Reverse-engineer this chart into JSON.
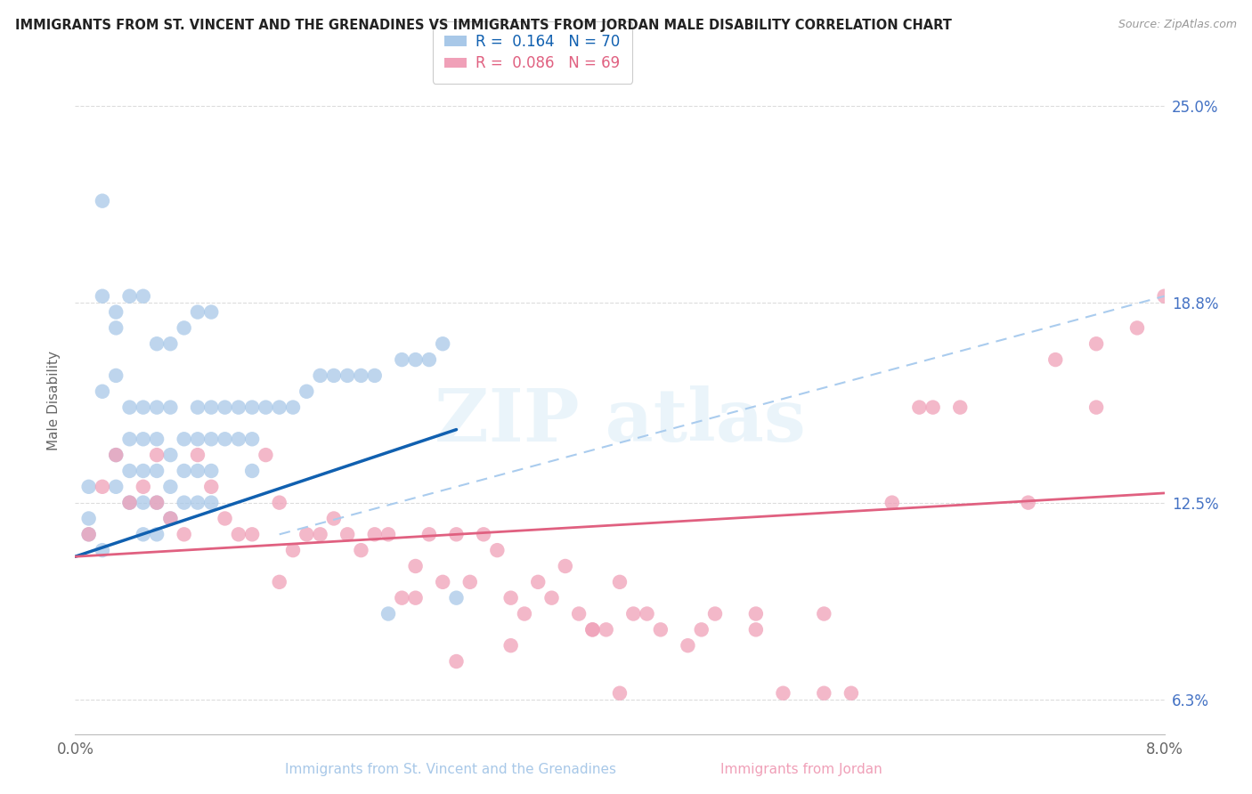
{
  "title": "IMMIGRANTS FROM ST. VINCENT AND THE GRENADINES VS IMMIGRANTS FROM JORDAN MALE DISABILITY CORRELATION CHART",
  "source": "Source: ZipAtlas.com",
  "xlabel_blue": "Immigrants from St. Vincent and the Grenadines",
  "xlabel_pink": "Immigrants from Jordan",
  "ylabel": "Male Disability",
  "xlim": [
    0.0,
    0.08
  ],
  "ylim": [
    0.052,
    0.262
  ],
  "yticks": [
    0.063,
    0.125,
    0.188,
    0.25
  ],
  "ytick_labels": [
    "6.3%",
    "12.5%",
    "18.8%",
    "25.0%"
  ],
  "xtick_labels": [
    "0.0%",
    "8.0%"
  ],
  "R_blue": 0.164,
  "N_blue": 70,
  "R_pink": 0.086,
  "N_pink": 69,
  "color_blue": "#a8c8e8",
  "color_pink": "#f0a0b8",
  "trendline_blue": "#1060b0",
  "trendline_pink": "#e06080",
  "blue_scatter_x": [
    0.001,
    0.001,
    0.001,
    0.002,
    0.002,
    0.002,
    0.003,
    0.003,
    0.003,
    0.003,
    0.004,
    0.004,
    0.004,
    0.004,
    0.005,
    0.005,
    0.005,
    0.005,
    0.005,
    0.006,
    0.006,
    0.006,
    0.006,
    0.006,
    0.007,
    0.007,
    0.007,
    0.007,
    0.008,
    0.008,
    0.008,
    0.009,
    0.009,
    0.009,
    0.009,
    0.01,
    0.01,
    0.01,
    0.01,
    0.011,
    0.011,
    0.012,
    0.012,
    0.013,
    0.013,
    0.013,
    0.014,
    0.015,
    0.016,
    0.017,
    0.018,
    0.019,
    0.02,
    0.021,
    0.022,
    0.023,
    0.024,
    0.025,
    0.026,
    0.027,
    0.028,
    0.006,
    0.007,
    0.008,
    0.009,
    0.01,
    0.003,
    0.004,
    0.005,
    0.002
  ],
  "blue_scatter_y": [
    0.115,
    0.13,
    0.12,
    0.22,
    0.19,
    0.11,
    0.18,
    0.165,
    0.14,
    0.13,
    0.155,
    0.145,
    0.135,
    0.125,
    0.155,
    0.145,
    0.135,
    0.125,
    0.115,
    0.155,
    0.145,
    0.135,
    0.125,
    0.115,
    0.155,
    0.14,
    0.13,
    0.12,
    0.145,
    0.135,
    0.125,
    0.155,
    0.145,
    0.135,
    0.125,
    0.155,
    0.145,
    0.135,
    0.125,
    0.155,
    0.145,
    0.155,
    0.145,
    0.155,
    0.145,
    0.135,
    0.155,
    0.155,
    0.155,
    0.16,
    0.165,
    0.165,
    0.165,
    0.165,
    0.165,
    0.09,
    0.17,
    0.17,
    0.17,
    0.175,
    0.095,
    0.175,
    0.175,
    0.18,
    0.185,
    0.185,
    0.185,
    0.19,
    0.19,
    0.16
  ],
  "pink_scatter_x": [
    0.001,
    0.002,
    0.003,
    0.004,
    0.005,
    0.006,
    0.006,
    0.007,
    0.008,
    0.009,
    0.01,
    0.011,
    0.012,
    0.013,
    0.014,
    0.015,
    0.016,
    0.017,
    0.018,
    0.019,
    0.02,
    0.021,
    0.022,
    0.023,
    0.024,
    0.025,
    0.026,
    0.027,
    0.028,
    0.029,
    0.03,
    0.031,
    0.032,
    0.033,
    0.034,
    0.035,
    0.036,
    0.037,
    0.038,
    0.039,
    0.04,
    0.041,
    0.043,
    0.045,
    0.047,
    0.05,
    0.052,
    0.055,
    0.057,
    0.04,
    0.025,
    0.015,
    0.028,
    0.032,
    0.038,
    0.042,
    0.046,
    0.05,
    0.055,
    0.06,
    0.062,
    0.065,
    0.07,
    0.072,
    0.075,
    0.078,
    0.08,
    0.063,
    0.075
  ],
  "pink_scatter_y": [
    0.115,
    0.13,
    0.14,
    0.125,
    0.13,
    0.125,
    0.14,
    0.12,
    0.115,
    0.14,
    0.13,
    0.12,
    0.115,
    0.115,
    0.14,
    0.1,
    0.11,
    0.115,
    0.115,
    0.12,
    0.115,
    0.11,
    0.115,
    0.115,
    0.095,
    0.105,
    0.115,
    0.1,
    0.115,
    0.1,
    0.115,
    0.11,
    0.095,
    0.09,
    0.1,
    0.095,
    0.105,
    0.09,
    0.085,
    0.085,
    0.065,
    0.09,
    0.085,
    0.08,
    0.09,
    0.085,
    0.065,
    0.065,
    0.065,
    0.1,
    0.095,
    0.125,
    0.075,
    0.08,
    0.085,
    0.09,
    0.085,
    0.09,
    0.09,
    0.125,
    0.155,
    0.155,
    0.125,
    0.17,
    0.175,
    0.18,
    0.19,
    0.155,
    0.155
  ]
}
